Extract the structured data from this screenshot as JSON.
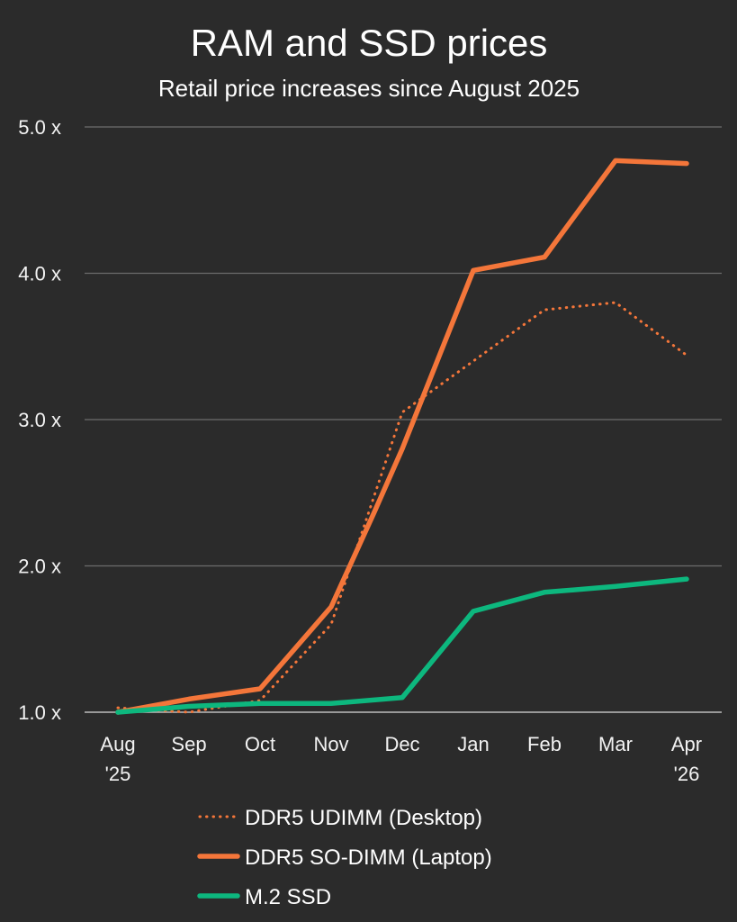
{
  "chart_data": {
    "type": "line",
    "title": "RAM and SSD prices",
    "subtitle": "Retail price increases since August 2025",
    "categories": [
      [
        "Aug",
        "'25"
      ],
      [
        "Sep"
      ],
      [
        "Oct"
      ],
      [
        "Nov"
      ],
      [
        "Dec"
      ],
      [
        "Jan"
      ],
      [
        "Feb"
      ],
      [
        "Mar"
      ],
      [
        "Apr",
        "'26"
      ]
    ],
    "y_ticks": [
      1.0,
      2.0,
      3.0,
      4.0,
      5.0
    ],
    "y_tick_labels": [
      "1.0 x",
      "2.0 x",
      "3.0 x",
      "4.0 x",
      "5.0 x"
    ],
    "ylim": [
      1.0,
      5.0
    ],
    "grid": true,
    "legend_position": "bottom",
    "series": [
      {
        "name": "DDR5 UDIMM (Desktop)",
        "style": "dotted",
        "color": "#f4763a",
        "values": [
          {
            "x": 0,
            "y": 1.03
          },
          {
            "x": 1,
            "y": 1.0
          },
          {
            "x": 2,
            "y": 1.08
          },
          {
            "x": 3,
            "y": 1.6
          },
          {
            "x": 4,
            "y": 3.05
          },
          {
            "x": 5,
            "y": 3.4
          },
          {
            "x": 6,
            "y": 3.75
          },
          {
            "x": 7,
            "y": 3.8
          },
          {
            "x": 8,
            "y": 3.44
          }
        ]
      },
      {
        "name": "DDR5 SO-DIMM (Laptop)",
        "style": "solid",
        "color": "#f4763a",
        "values": [
          {
            "x": 0,
            "y": 1.0
          },
          {
            "x": 1,
            "y": 1.09
          },
          {
            "x": 2,
            "y": 1.16
          },
          {
            "x": 3,
            "y": 1.72
          },
          {
            "x": 3.6,
            "y": 2.36
          },
          {
            "x": 4,
            "y": 2.8
          },
          {
            "x": 5,
            "y": 4.02
          },
          {
            "x": 6,
            "y": 4.11
          },
          {
            "x": 7,
            "y": 4.77
          },
          {
            "x": 8,
            "y": 4.75
          }
        ]
      },
      {
        "name": "M.2 SSD",
        "style": "solid",
        "color": "#0db77e",
        "values": [
          {
            "x": 0,
            "y": 1.0
          },
          {
            "x": 1,
            "y": 1.04
          },
          {
            "x": 2,
            "y": 1.06
          },
          {
            "x": 3,
            "y": 1.06
          },
          {
            "x": 4,
            "y": 1.1
          },
          {
            "x": 5,
            "y": 1.69
          },
          {
            "x": 6,
            "y": 1.82
          },
          {
            "x": 7,
            "y": 1.86
          },
          {
            "x": 8,
            "y": 1.91
          }
        ]
      }
    ]
  }
}
